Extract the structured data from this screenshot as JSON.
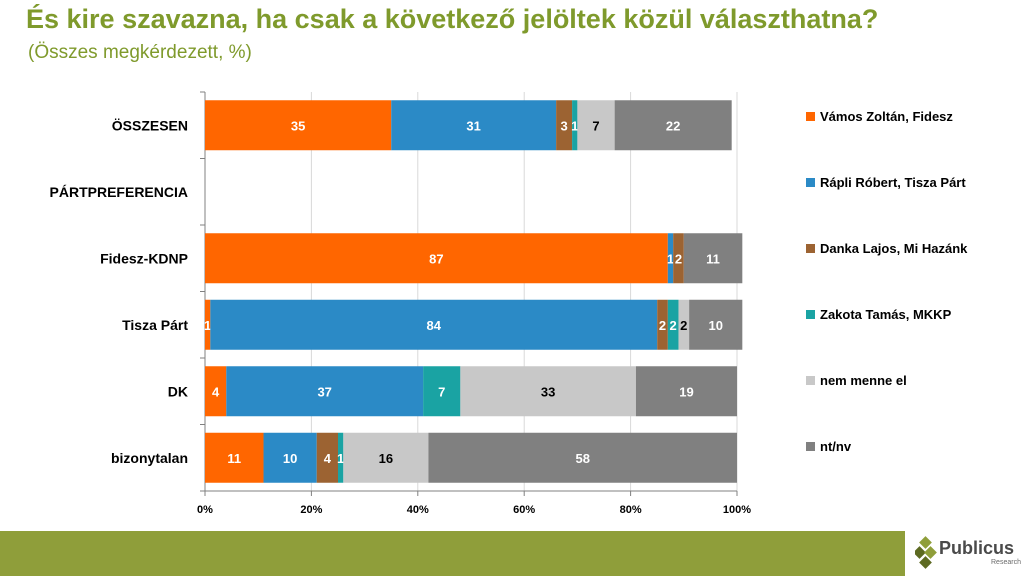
{
  "title": "És kire szavazna, ha csak a következő jelöltek közül választhatna?",
  "subtitle": "(Összes megkérdezett, %)",
  "logo": {
    "name": "Publicus",
    "sub": "Research"
  },
  "chart_data": {
    "type": "bar",
    "orientation": "horizontal",
    "stacked": true,
    "categories": [
      "ÖSSZESEN",
      "PÁRTPREFERENCIA",
      "Fidesz-KDNP",
      "Tisza Párt",
      "DK",
      "bizonytalan"
    ],
    "series": [
      {
        "name": "Vámos Zoltán, Fidesz",
        "color": "#ff6600",
        "values": [
          35,
          null,
          87,
          1,
          4,
          11
        ],
        "labels": [
          "35",
          "",
          "87",
          "1",
          "4",
          "11"
        ]
      },
      {
        "name": "Rápli Róbert, Tisza Párt",
        "color": "#2b8ac6",
        "values": [
          31,
          null,
          1,
          84,
          37,
          10
        ],
        "labels": [
          "31",
          "",
          "1",
          "84",
          "37",
          "10"
        ]
      },
      {
        "name": "Danka Lajos, Mi Hazánk",
        "color": "#9c6332",
        "values": [
          3,
          null,
          2,
          2,
          0,
          4
        ],
        "labels": [
          "3",
          "",
          "2",
          "2",
          "",
          "4"
        ]
      },
      {
        "name": "Zakota Tamás, MKKP",
        "color": "#1aa3a3",
        "values": [
          1,
          null,
          0,
          2,
          7,
          1
        ],
        "labels": [
          "1",
          "",
          "",
          "2",
          "7",
          "1"
        ]
      },
      {
        "name": "nem menne el",
        "color": "#c8c8c8",
        "values": [
          7,
          null,
          0,
          2,
          33,
          16
        ],
        "labels": [
          "7",
          "",
          "",
          "2",
          "33",
          "16"
        ]
      },
      {
        "name": "nt/nv",
        "color": "#808080",
        "values": [
          22,
          null,
          11,
          10,
          19,
          58
        ],
        "labels": [
          "22",
          "",
          "11",
          "10",
          "19",
          "58"
        ]
      }
    ],
    "xticks": [
      "0%",
      "20%",
      "40%",
      "60%",
      "80%",
      "100%"
    ],
    "xlim": [
      0,
      100
    ],
    "legend_position": "right",
    "grid": true
  }
}
